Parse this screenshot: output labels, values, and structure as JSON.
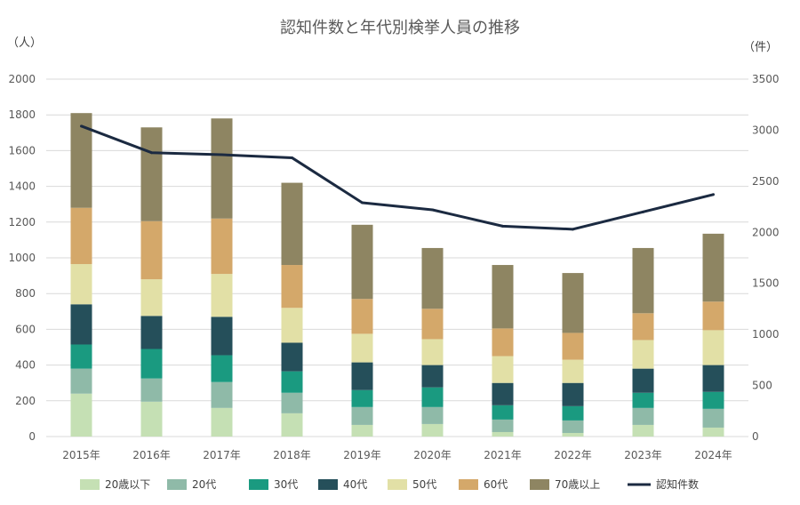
{
  "chart_data": {
    "type": "bar",
    "stacked": true,
    "title": "認知件数と年代別検挙人員の推移",
    "ylabel": "（人）",
    "y2label": "（件）",
    "ylim": [
      0,
      2000
    ],
    "y2lim": [
      0,
      3500
    ],
    "yticks": [
      0,
      200,
      400,
      600,
      800,
      1000,
      1200,
      1400,
      1600,
      1800,
      2000
    ],
    "y2ticks": [
      0,
      500,
      1000,
      1500,
      2000,
      2500,
      3000,
      3500
    ],
    "grid": true,
    "legend_position": "bottom",
    "categories": [
      "2015年",
      "2016年",
      "2017年",
      "2018年",
      "2019年",
      "2020年",
      "2021年",
      "2022年",
      "2023年",
      "2024年"
    ],
    "series": [
      {
        "name": "20歳以下",
        "color": "#c5e0b4",
        "values": [
          240,
          195,
          160,
          130,
          65,
          70,
          25,
          20,
          65,
          50
        ]
      },
      {
        "name": "20代",
        "color": "#8fbaa8",
        "values": [
          140,
          130,
          145,
          115,
          100,
          95,
          70,
          70,
          95,
          105
        ]
      },
      {
        "name": "30代",
        "color": "#1a9a80",
        "values": [
          135,
          165,
          150,
          120,
          95,
          110,
          80,
          80,
          85,
          95
        ]
      },
      {
        "name": "40代",
        "color": "#254f5a",
        "values": [
          225,
          185,
          215,
          160,
          155,
          125,
          125,
          130,
          135,
          150
        ]
      },
      {
        "name": "50代",
        "color": "#e2e0a6",
        "values": [
          225,
          205,
          240,
          195,
          160,
          145,
          150,
          130,
          160,
          195
        ]
      },
      {
        "name": "60代",
        "color": "#d4a86a",
        "values": [
          315,
          325,
          310,
          240,
          195,
          170,
          155,
          150,
          150,
          160
        ]
      },
      {
        "name": "70歳以上",
        "color": "#8e8562",
        "values": [
          530,
          525,
          560,
          460,
          415,
          340,
          355,
          335,
          365,
          380
        ]
      }
    ],
    "line_series": {
      "name": "認知件数",
      "color": "#1b2a41",
      "axis": "right",
      "values": [
        3040,
        2780,
        2760,
        2730,
        2290,
        2220,
        2060,
        2030,
        2200,
        2370
      ]
    }
  }
}
